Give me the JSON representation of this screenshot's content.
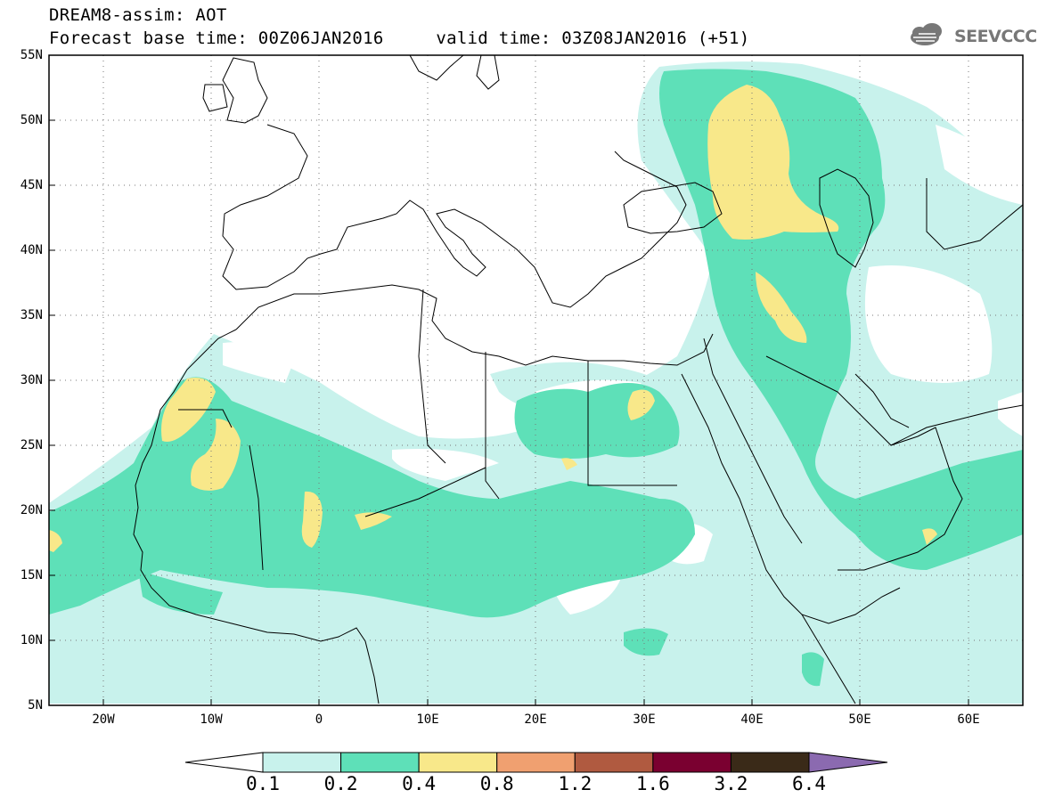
{
  "header": {
    "title_line1": "DREAM8-assim: AOT",
    "title_line2": "Forecast base time: 00Z06JAN2016     valid time: 03Z08JAN2016 (+51)",
    "logo_text": "SEEVCCC",
    "logo_icon": "cloud-logo-icon"
  },
  "map": {
    "projection": "lat-lon",
    "lon_range": [
      -25,
      65
    ],
    "lat_range": [
      5,
      55
    ],
    "grid": true,
    "lat_labels": [
      "55N",
      "50N",
      "45N",
      "40N",
      "35N",
      "30N",
      "25N",
      "20N",
      "15N",
      "10N",
      "5N"
    ],
    "lon_labels": [
      "20W",
      "10W",
      "0",
      "10E",
      "20E",
      "30E",
      "40E",
      "50E",
      "60E"
    ],
    "field": "AOT"
  },
  "colorbar": {
    "levels": [
      "0.1",
      "0.2",
      "0.4",
      "0.8",
      "1.2",
      "1.6",
      "3.2",
      "6.4"
    ],
    "colors": [
      "#ffffff",
      "#c8f2ec",
      "#5ee0b8",
      "#f8e88a",
      "#f0a070",
      "#b05a40",
      "#7a0030",
      "#3a2a18",
      "#8b6ab0"
    ]
  }
}
